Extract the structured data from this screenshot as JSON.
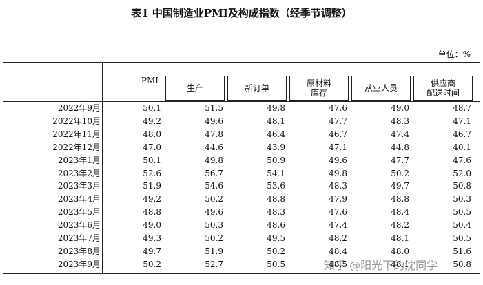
{
  "title": "表1 中国制造业PMI及构成指数（经季节调整）",
  "unit": "单位：%",
  "table": {
    "columns": [
      [
        "PMI"
      ],
      [
        "生产"
      ],
      [
        "新订单"
      ],
      [
        "原材料",
        "库存"
      ],
      [
        "从业人员"
      ],
      [
        "供应商",
        "配送时间"
      ]
    ],
    "rows": [
      [
        "2022年9月",
        "50.1",
        "51.5",
        "49.8",
        "47.6",
        "49.0",
        "48.7"
      ],
      [
        "2022年10月",
        "49.2",
        "49.6",
        "48.1",
        "47.7",
        "48.3",
        "47.1"
      ],
      [
        "2022年11月",
        "48.0",
        "47.8",
        "46.4",
        "46.7",
        "47.4",
        "46.7"
      ],
      [
        "2022年12月",
        "47.0",
        "44.6",
        "43.9",
        "47.1",
        "44.8",
        "40.1"
      ],
      [
        "2023年1月",
        "50.1",
        "49.8",
        "50.9",
        "49.6",
        "47.7",
        "47.6"
      ],
      [
        "2023年2月",
        "52.6",
        "56.7",
        "54.1",
        "49.8",
        "50.2",
        "52.0"
      ],
      [
        "2023年3月",
        "51.9",
        "54.6",
        "53.6",
        "48.3",
        "49.7",
        "50.8"
      ],
      [
        "2023年4月",
        "49.2",
        "50.2",
        "48.8",
        "47.9",
        "48.8",
        "50.3"
      ],
      [
        "2023年5月",
        "48.8",
        "49.6",
        "48.3",
        "47.6",
        "48.4",
        "50.5"
      ],
      [
        "2023年6月",
        "49.0",
        "50.3",
        "48.6",
        "47.4",
        "48.2",
        "50.4"
      ],
      [
        "2023年7月",
        "49.3",
        "50.2",
        "49.5",
        "48.2",
        "48.1",
        "50.5"
      ],
      [
        "2023年8月",
        "49.7",
        "51.9",
        "50.2",
        "48.4",
        "48.0",
        "51.6"
      ],
      [
        "2023年9月",
        "50.2",
        "52.7",
        "50.5",
        "48.5",
        "48.1",
        "50.8"
      ]
    ]
  },
  "watermark": "知乎 @阳光下的沈同学"
}
